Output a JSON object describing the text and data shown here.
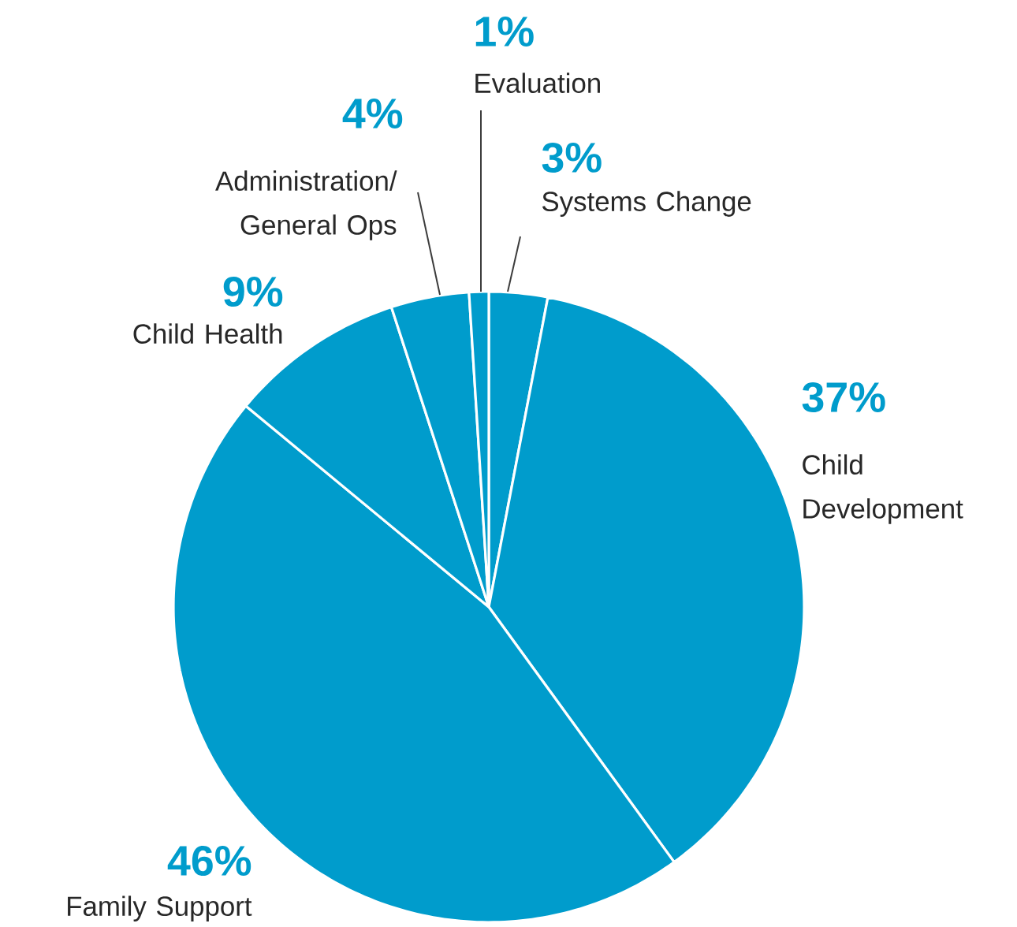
{
  "chart_data": {
    "type": "pie",
    "categories": [
      "Systems Change",
      "Child Development",
      "Family Support",
      "Child Health",
      "Administration/ General Ops",
      "Evaluation"
    ],
    "values": [
      3,
      37,
      46,
      9,
      4,
      1
    ],
    "value_labels": [
      "3%",
      "37%",
      "46%",
      "9%",
      "4%",
      "1%"
    ],
    "colors": [
      "#009ccc",
      "#009ccc",
      "#009ccc",
      "#009ccc",
      "#009ccc",
      "#009ccc"
    ]
  }
}
